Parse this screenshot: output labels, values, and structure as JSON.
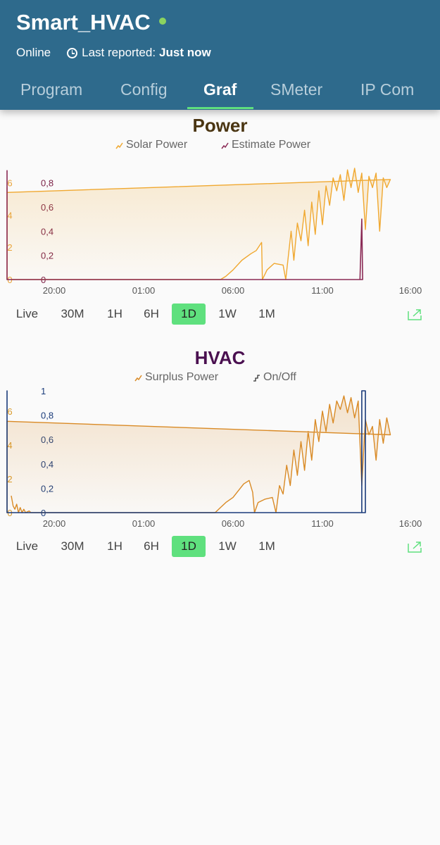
{
  "header": {
    "title": "Smart_HVAC",
    "status": "Online",
    "last_reported_label": "Last reported:",
    "last_reported_value": "Just now",
    "online_color": "#8bd35f"
  },
  "tabs": [
    {
      "label": "Program"
    },
    {
      "label": "Config"
    },
    {
      "label": "Graf",
      "active": true
    },
    {
      "label": "SMeter"
    },
    {
      "label": "IP Com"
    }
  ],
  "power_panel": {
    "ranges": [
      "Live",
      "30M",
      "1H",
      "6H",
      "1D",
      "1W",
      "1M"
    ],
    "selected_range": "1D",
    "expand_icon": "expand-icon"
  },
  "hvac_panel": {
    "ranges": [
      "Live",
      "30M",
      "1H",
      "6H",
      "1D",
      "1W",
      "1M"
    ],
    "selected_range": "1D",
    "expand_icon": "expand-icon"
  },
  "chart_data": [
    {
      "type": "line",
      "title": "Power",
      "title_color": "#4a3512",
      "x_labels": [
        "20:00",
        "01:00",
        "06:00",
        "11:00",
        "16:00"
      ],
      "x_range_hours": [
        17.6,
        16.7
      ],
      "y_left": {
        "ticks": [
          "0",
          "2",
          "4",
          "6"
        ],
        "range": [
          0,
          7.2
        ],
        "color": "#e9a43a"
      },
      "y_right": {
        "ticks": [
          "0",
          "0,2",
          "0,4",
          "0,6",
          "0,8"
        ],
        "range": [
          0,
          0.96
        ],
        "color": "#7a1f45"
      },
      "series": [
        {
          "name": "Solar Power",
          "axis": "left",
          "color": "#f0a830",
          "fill": true,
          "points": [
            [
              17.6,
              0
            ],
            [
              5.3,
              0
            ],
            [
              5.6,
              0.2
            ],
            [
              6.0,
              0.6
            ],
            [
              6.5,
              1.2
            ],
            [
              7.0,
              1.6
            ],
            [
              7.3,
              1.8
            ],
            [
              7.6,
              2.3
            ],
            [
              7.64,
              0
            ],
            [
              7.9,
              0.6
            ],
            [
              8.3,
              1.0
            ],
            [
              8.8,
              0.9
            ],
            [
              8.95,
              0
            ],
            [
              9.1,
              1.5
            ],
            [
              9.25,
              3.0
            ],
            [
              9.4,
              1.2
            ],
            [
              9.6,
              3.5
            ],
            [
              9.8,
              2.4
            ],
            [
              10.0,
              4.3
            ],
            [
              10.2,
              2.1
            ],
            [
              10.4,
              4.8
            ],
            [
              10.6,
              2.8
            ],
            [
              10.8,
              5.5
            ],
            [
              11.0,
              3.4
            ],
            [
              11.2,
              5.8
            ],
            [
              11.4,
              4.6
            ],
            [
              11.6,
              6.3
            ],
            [
              11.8,
              5.5
            ],
            [
              12.0,
              6.5
            ],
            [
              12.2,
              4.9
            ],
            [
              12.4,
              6.8
            ],
            [
              12.6,
              5.7
            ],
            [
              12.8,
              6.9
            ],
            [
              13.0,
              5.4
            ],
            [
              13.2,
              6.6
            ],
            [
              13.4,
              3.1
            ],
            [
              13.6,
              6.4
            ],
            [
              13.8,
              5.7
            ],
            [
              14.0,
              6.6
            ],
            [
              14.2,
              3.0
            ],
            [
              14.4,
              6.3
            ],
            [
              14.6,
              5.7
            ],
            [
              14.8,
              6.2
            ],
            [
              15.0,
              5.4
            ],
            [
              15.2,
              5.7
            ],
            [
              15.4,
              4.9
            ],
            [
              15.5,
              5.1
            ],
            [
              15.6,
              1.6
            ],
            [
              15.7,
              3.6
            ],
            [
              15.8,
              0
            ],
            [
              15.9,
              3.7
            ],
            [
              16.0,
              0.3
            ],
            [
              16.1,
              4.2
            ],
            [
              16.2,
              1.1
            ],
            [
              16.3,
              4.6
            ],
            [
              16.4,
              3.8
            ],
            [
              16.5,
              4.2
            ],
            [
              16.7,
              3.3
            ]
          ]
        },
        {
          "name": "Estimate Power",
          "axis": "right",
          "color": "#8a2a55",
          "fill": false,
          "points": [
            [
              17.6,
              0
            ],
            [
              13.1,
              0
            ],
            [
              13.2,
              0.5
            ],
            [
              13.25,
              0
            ],
            [
              15.6,
              0
            ],
            [
              15.65,
              0.05
            ],
            [
              15.7,
              0
            ],
            [
              15.85,
              0
            ],
            [
              15.9,
              0.6
            ],
            [
              15.95,
              0
            ],
            [
              16.1,
              0
            ],
            [
              16.15,
              0.9
            ],
            [
              16.2,
              0
            ],
            [
              16.3,
              0.9
            ],
            [
              16.35,
              0.5
            ],
            [
              16.4,
              0.9
            ],
            [
              16.45,
              0.05
            ],
            [
              16.5,
              0.9
            ],
            [
              16.6,
              0.5
            ],
            [
              16.7,
              0.4
            ]
          ]
        }
      ]
    },
    {
      "type": "line",
      "title": "HVAC",
      "title_color": "#4a1050",
      "x_labels": [
        "20:00",
        "01:00",
        "06:00",
        "11:00",
        "16:00"
      ],
      "x_range_hours": [
        17.6,
        16.7
      ],
      "y_left": {
        "ticks": [
          "0",
          "2",
          "4",
          "6"
        ],
        "range": [
          0,
          7.2
        ],
        "color": "#d99a2b"
      },
      "y_right": {
        "ticks": [
          "0",
          "0,2",
          "0,4",
          "0,6",
          "0,8",
          "1"
        ],
        "range": [
          0,
          1.0
        ],
        "color": "#1a3b7a"
      },
      "series": [
        {
          "name": "Surplus Power",
          "axis": "left",
          "color": "#d98a25",
          "fill": true,
          "points": [
            [
              17.6,
              1.0
            ],
            [
              17.7,
              0.4
            ],
            [
              17.8,
              0.2
            ],
            [
              17.9,
              0.5
            ],
            [
              18.0,
              0
            ],
            [
              18.1,
              0.3
            ],
            [
              18.2,
              0
            ],
            [
              18.3,
              0.2
            ],
            [
              18.4,
              0
            ],
            [
              18.6,
              0.1
            ],
            [
              18.7,
              0
            ],
            [
              5.0,
              0
            ],
            [
              5.3,
              0.3
            ],
            [
              5.6,
              0.6
            ],
            [
              6.0,
              0.9
            ],
            [
              6.3,
              1.3
            ],
            [
              6.6,
              1.7
            ],
            [
              6.9,
              1.9
            ],
            [
              7.1,
              1.2
            ],
            [
              7.2,
              0
            ],
            [
              7.4,
              0.6
            ],
            [
              7.8,
              0.8
            ],
            [
              8.2,
              0.9
            ],
            [
              8.4,
              0
            ],
            [
              8.6,
              1.6
            ],
            [
              8.8,
              1.1
            ],
            [
              9.0,
              2.8
            ],
            [
              9.2,
              1.6
            ],
            [
              9.4,
              3.7
            ],
            [
              9.6,
              2.2
            ],
            [
              9.8,
              4.2
            ],
            [
              10.0,
              2.5
            ],
            [
              10.2,
              4.8
            ],
            [
              10.4,
              3.1
            ],
            [
              10.6,
              5.5
            ],
            [
              10.8,
              4.2
            ],
            [
              11.0,
              6.0
            ],
            [
              11.2,
              4.8
            ],
            [
              11.4,
              6.4
            ],
            [
              11.6,
              5.3
            ],
            [
              11.8,
              6.6
            ],
            [
              12.0,
              6.1
            ],
            [
              12.2,
              6.9
            ],
            [
              12.4,
              5.9
            ],
            [
              12.6,
              6.8
            ],
            [
              12.8,
              5.6
            ],
            [
              13.0,
              6.6
            ],
            [
              13.2,
              1.6
            ],
            [
              13.4,
              5.5
            ],
            [
              13.6,
              4.6
            ],
            [
              13.8,
              5.1
            ],
            [
              14.0,
              3.1
            ],
            [
              14.2,
              5.5
            ],
            [
              14.4,
              4.1
            ],
            [
              14.6,
              5.6
            ],
            [
              14.8,
              4.6
            ],
            [
              15.0,
              5.4
            ],
            [
              15.1,
              0
            ],
            [
              15.2,
              5.1
            ],
            [
              15.4,
              4.8
            ],
            [
              15.6,
              5.2
            ],
            [
              15.7,
              1.6
            ],
            [
              15.8,
              0
            ],
            [
              15.9,
              3.3
            ],
            [
              16.1,
              4.1
            ],
            [
              16.3,
              1.5
            ],
            [
              16.4,
              4.2
            ],
            [
              16.5,
              2.6
            ],
            [
              16.6,
              3.0
            ],
            [
              16.7,
              3.2
            ]
          ]
        },
        {
          "name": "On/Off",
          "axis": "right",
          "color": "#1a3b7a",
          "fill": false,
          "step": true,
          "points": [
            [
              17.6,
              0
            ],
            [
              13.2,
              0
            ],
            [
              13.2,
              1
            ],
            [
              13.4,
              1
            ],
            [
              13.4,
              0
            ],
            [
              15.6,
              0
            ],
            [
              15.6,
              1
            ],
            [
              15.9,
              1
            ],
            [
              15.9,
              0
            ],
            [
              16.3,
              0
            ],
            [
              16.3,
              1
            ],
            [
              16.4,
              1
            ],
            [
              16.4,
              0
            ],
            [
              16.45,
              0
            ],
            [
              16.45,
              1
            ],
            [
              16.55,
              1
            ],
            [
              16.55,
              0
            ],
            [
              16.6,
              0
            ],
            [
              16.6,
              1
            ],
            [
              16.7,
              1
            ]
          ]
        }
      ]
    }
  ]
}
